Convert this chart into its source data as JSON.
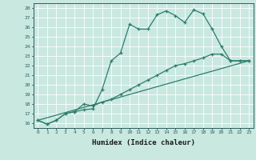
{
  "xlabel": "Humidex (Indice chaleur)",
  "ylabel": "",
  "bg_color": "#c8e8e0",
  "grid_color": "#ffffff",
  "line_color": "#2e7d6e",
  "xlim": [
    -0.5,
    23.5
  ],
  "ylim": [
    15.5,
    28.5
  ],
  "xticks": [
    0,
    1,
    2,
    3,
    4,
    5,
    6,
    7,
    8,
    9,
    10,
    11,
    12,
    13,
    14,
    15,
    16,
    17,
    18,
    19,
    20,
    21,
    22,
    23
  ],
  "yticks": [
    16,
    17,
    18,
    19,
    20,
    21,
    22,
    23,
    24,
    25,
    26,
    27,
    28
  ],
  "line1_x": [
    0,
    1,
    2,
    3,
    4,
    5,
    6,
    7,
    8,
    9,
    10,
    11,
    12,
    13,
    14,
    15,
    16,
    17,
    18,
    19,
    20,
    21,
    22,
    23
  ],
  "line1_y": [
    16.3,
    15.9,
    16.3,
    17.0,
    17.2,
    17.4,
    17.5,
    19.5,
    22.5,
    23.3,
    26.3,
    25.8,
    25.8,
    27.3,
    27.7,
    27.2,
    26.5,
    27.8,
    27.4,
    25.8,
    24.0,
    22.5,
    22.5,
    22.5
  ],
  "line2_x": [
    0,
    1,
    2,
    3,
    4,
    5,
    6,
    7,
    8,
    9,
    10,
    11,
    12,
    13,
    14,
    15,
    16,
    17,
    18,
    19,
    20,
    21,
    22,
    23
  ],
  "line2_y": [
    16.3,
    15.9,
    16.3,
    17.0,
    17.2,
    18.0,
    17.8,
    18.2,
    18.5,
    19.0,
    19.5,
    20.0,
    20.5,
    21.0,
    21.5,
    22.0,
    22.2,
    22.5,
    22.8,
    23.2,
    23.2,
    22.5,
    22.5,
    22.5
  ],
  "line3_x": [
    0,
    23
  ],
  "line3_y": [
    16.3,
    22.5
  ]
}
